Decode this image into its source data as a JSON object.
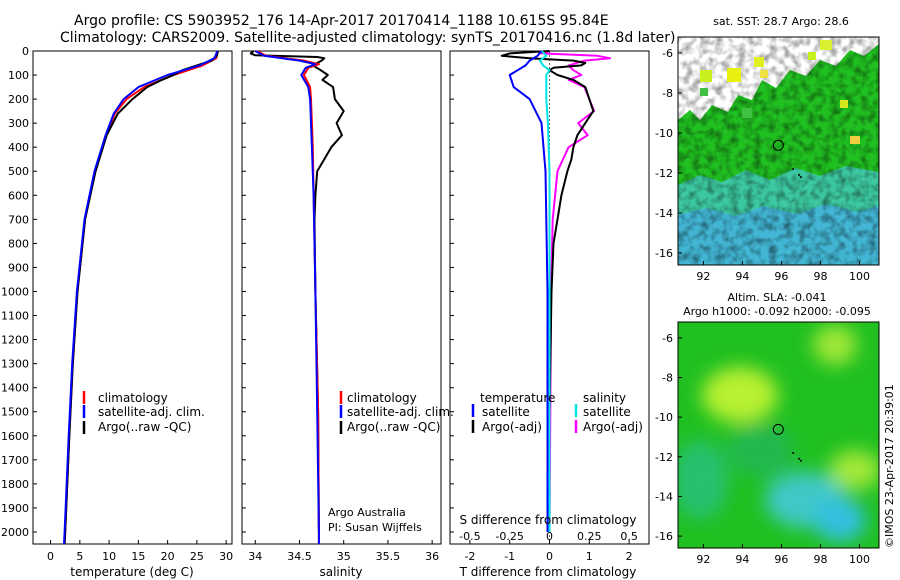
{
  "header": {
    "line1": "Argo profile: CS 5903952_176 14-Apr-2017 20170414_1188 10.615S 95.84E",
    "line2": "Climatology: CARS2009. Satellite-adjusted climatology: synTS_20170416.nc (1.8d later)"
  },
  "footer": {
    "imos": "©IMOS 23-Apr-2017 20:39:01"
  },
  "colors": {
    "climatology": "#ff0000",
    "satellite": "#0000ff",
    "argo": "#000000",
    "satellite_sal": "#00e5e5",
    "argo_sal": "#ff00ff"
  },
  "chart_data": [
    {
      "type": "line",
      "name": "temperature",
      "xlabel": "temperature (deg C)",
      "ylabel": "",
      "xlim": [
        -3,
        31
      ],
      "ylim": [
        2050,
        0
      ],
      "xticks": [
        0,
        5,
        10,
        15,
        20,
        25,
        30
      ],
      "yticks": [
        0,
        100,
        200,
        300,
        400,
        500,
        600,
        700,
        800,
        900,
        1000,
        1100,
        1200,
        1300,
        1400,
        1500,
        1600,
        1700,
        1800,
        1900,
        2000
      ],
      "legend": [
        "climatology",
        "satellite-adj. clim.",
        "Argo(..raw -QC)"
      ],
      "series": [
        {
          "name": "climatology",
          "depth": [
            0,
            30,
            60,
            100,
            150,
            200,
            260,
            350,
            500,
            700,
            1000,
            1300,
            1600,
            2000,
            2050
          ],
          "values": [
            28.6,
            28.3,
            26.0,
            21.0,
            16.0,
            13.0,
            11.0,
            9.5,
            7.6,
            5.9,
            4.6,
            3.8,
            3.2,
            2.5,
            2.4
          ]
        },
        {
          "name": "satellite-adj. clim.",
          "depth": [
            0,
            30,
            60,
            100,
            150,
            200,
            260,
            350,
            500,
            700,
            1000,
            1300,
            1600,
            2000,
            2050
          ],
          "values": [
            28.5,
            28.0,
            25.5,
            20.0,
            15.0,
            12.5,
            10.8,
            9.4,
            7.5,
            5.8,
            4.5,
            3.7,
            3.1,
            2.4,
            2.3
          ]
        },
        {
          "name": "Argo(..raw -QC)",
          "depth": [
            0,
            20,
            40,
            60,
            80,
            100,
            120,
            150,
            200,
            260,
            350,
            500,
            700,
            1000,
            1300,
            1600,
            2000,
            2050
          ],
          "values": [
            28.6,
            28.4,
            27.5,
            25.0,
            22.5,
            21.0,
            19.0,
            16.5,
            14.0,
            11.5,
            9.6,
            7.7,
            5.9,
            4.6,
            3.8,
            3.2,
            2.5,
            2.4
          ]
        }
      ]
    },
    {
      "type": "line",
      "name": "salinity",
      "xlabel": "salinity",
      "ylabel": "",
      "xlim": [
        33.85,
        36.1
      ],
      "ylim": [
        2050,
        0
      ],
      "xticks": [
        34,
        34.5,
        35,
        35.5,
        36
      ],
      "legend": [
        "climatology",
        "satellite-adj. clim.",
        "Argo(..raw -QC)"
      ],
      "annotation_line1": "Argo Australia",
      "annotation_line2": "PI: Susan Wijffels",
      "series": [
        {
          "name": "climatology",
          "depth": [
            0,
            20,
            40,
            55,
            70,
            100,
            150,
            200,
            300,
            400,
            600,
            1000,
            1500,
            2000,
            2050
          ],
          "values": [
            34.02,
            34.12,
            34.55,
            34.72,
            34.6,
            34.55,
            34.62,
            34.63,
            34.64,
            34.65,
            34.66,
            34.68,
            34.71,
            34.72,
            34.72
          ]
        },
        {
          "name": "satellite-adj. clim.",
          "depth": [
            0,
            20,
            40,
            55,
            70,
            100,
            150,
            200,
            300,
            400,
            600,
            1000,
            1500,
            2000,
            2050
          ],
          "values": [
            34.0,
            34.1,
            34.5,
            34.68,
            34.57,
            34.52,
            34.6,
            34.62,
            34.63,
            34.64,
            34.66,
            34.68,
            34.7,
            34.72,
            34.72
          ]
        },
        {
          "name": "Argo(..raw -QC)",
          "depth": [
            0,
            10,
            18,
            25,
            30,
            40,
            60,
            80,
            100,
            120,
            150,
            200,
            250,
            300,
            350,
            400,
            450,
            500,
            600,
            700,
            1000,
            1500,
            2000
          ],
          "values": [
            33.98,
            33.95,
            34.0,
            34.7,
            34.78,
            34.75,
            34.65,
            34.74,
            34.82,
            34.76,
            34.88,
            34.9,
            35.0,
            34.92,
            34.98,
            34.86,
            34.78,
            34.7,
            34.68,
            34.67,
            34.68,
            34.71,
            34.72
          ]
        }
      ]
    },
    {
      "type": "line",
      "name": "difference from climatology",
      "xlabel": "T difference from climatology",
      "xlabel_top": "S difference from climatology",
      "xlim": [
        -2.5,
        2.5
      ],
      "ylim": [
        2050,
        0
      ],
      "xticks": [
        -2,
        -1,
        0,
        1,
        2
      ],
      "xticks_s": [
        -0.5,
        -0.25,
        0,
        0.25,
        0.5
      ],
      "legend_t_title": "temperature",
      "legend_s_title": "salinity",
      "legend_entries_t": [
        "satellite",
        "Argo(-adj)"
      ],
      "legend_entries_s": [
        "satellite",
        "Argo(-adj)"
      ],
      "series": [
        {
          "name": "T satellite",
          "depth": [
            0,
            20,
            40,
            60,
            80,
            100,
            150,
            200,
            300,
            500,
            1000,
            2000
          ],
          "values": [
            -0.2,
            -0.3,
            -0.5,
            -0.6,
            -0.8,
            -1.0,
            -0.9,
            -0.5,
            -0.2,
            -0.1,
            -0.05,
            -0.05
          ]
        },
        {
          "name": "T Argo(-adj)",
          "depth": [
            0,
            10,
            20,
            30,
            40,
            50,
            60,
            70,
            80,
            100,
            120,
            150,
            200,
            250,
            300,
            350,
            400,
            450,
            500,
            600,
            700,
            800,
            1000,
            1500,
            1800,
            2000
          ],
          "values": [
            0.0,
            -1.0,
            -1.2,
            -0.5,
            0.6,
            0.9,
            0.8,
            0.1,
            0.0,
            0.2,
            0.6,
            0.9,
            1.0,
            1.1,
            0.9,
            0.7,
            0.6,
            0.55,
            0.45,
            0.3,
            0.2,
            0.1,
            0.05,
            0.0,
            -0.05,
            0.0
          ]
        },
        {
          "name": "S satellite",
          "depth": [
            0,
            20,
            40,
            60,
            80,
            100,
            150,
            200,
            300,
            500,
            1000,
            2000
          ],
          "values": [
            -0.05,
            -0.02,
            -0.06,
            -0.04,
            0.0,
            -0.02,
            -0.02,
            -0.02,
            -0.01,
            0.0,
            0.0,
            0.0
          ]
        },
        {
          "name": "S Argo(-adj)",
          "depth": [
            0,
            10,
            20,
            30,
            40,
            60,
            80,
            100,
            120,
            150,
            200,
            250,
            300,
            350,
            400,
            500,
            700,
            1000,
            2000
          ],
          "values": [
            0.0,
            -0.05,
            0.3,
            0.38,
            0.22,
            0.12,
            0.15,
            0.2,
            0.12,
            0.22,
            0.25,
            0.28,
            0.18,
            0.24,
            0.12,
            0.05,
            0.02,
            0.01,
            0.0
          ]
        }
      ]
    },
    {
      "type": "heatmap",
      "name": "sst map",
      "title": "sat. SST: 28.7 Argo: 28.6",
      "xticks": [
        92,
        94,
        96,
        98,
        100
      ],
      "yticks": [
        -6,
        -8,
        -10,
        -12,
        -14,
        -16
      ],
      "xlim": [
        90.7,
        101.0
      ],
      "ylim": [
        -16.6,
        -5.2
      ],
      "marker": {
        "lon": 95.84,
        "lat": -10.615
      }
    },
    {
      "type": "heatmap",
      "name": "sla map",
      "title_line1": "Altim. SLA: -0.041",
      "title_line2": "Argo h1000: -0.092 h2000: -0.095",
      "xticks": [
        92,
        94,
        96,
        98,
        100
      ],
      "yticks": [
        -6,
        -8,
        -10,
        -12,
        -14,
        -16
      ],
      "xlim": [
        90.7,
        101.0
      ],
      "ylim": [
        -16.6,
        -5.2
      ],
      "marker": {
        "lon": 95.84,
        "lat": -10.615
      }
    }
  ]
}
